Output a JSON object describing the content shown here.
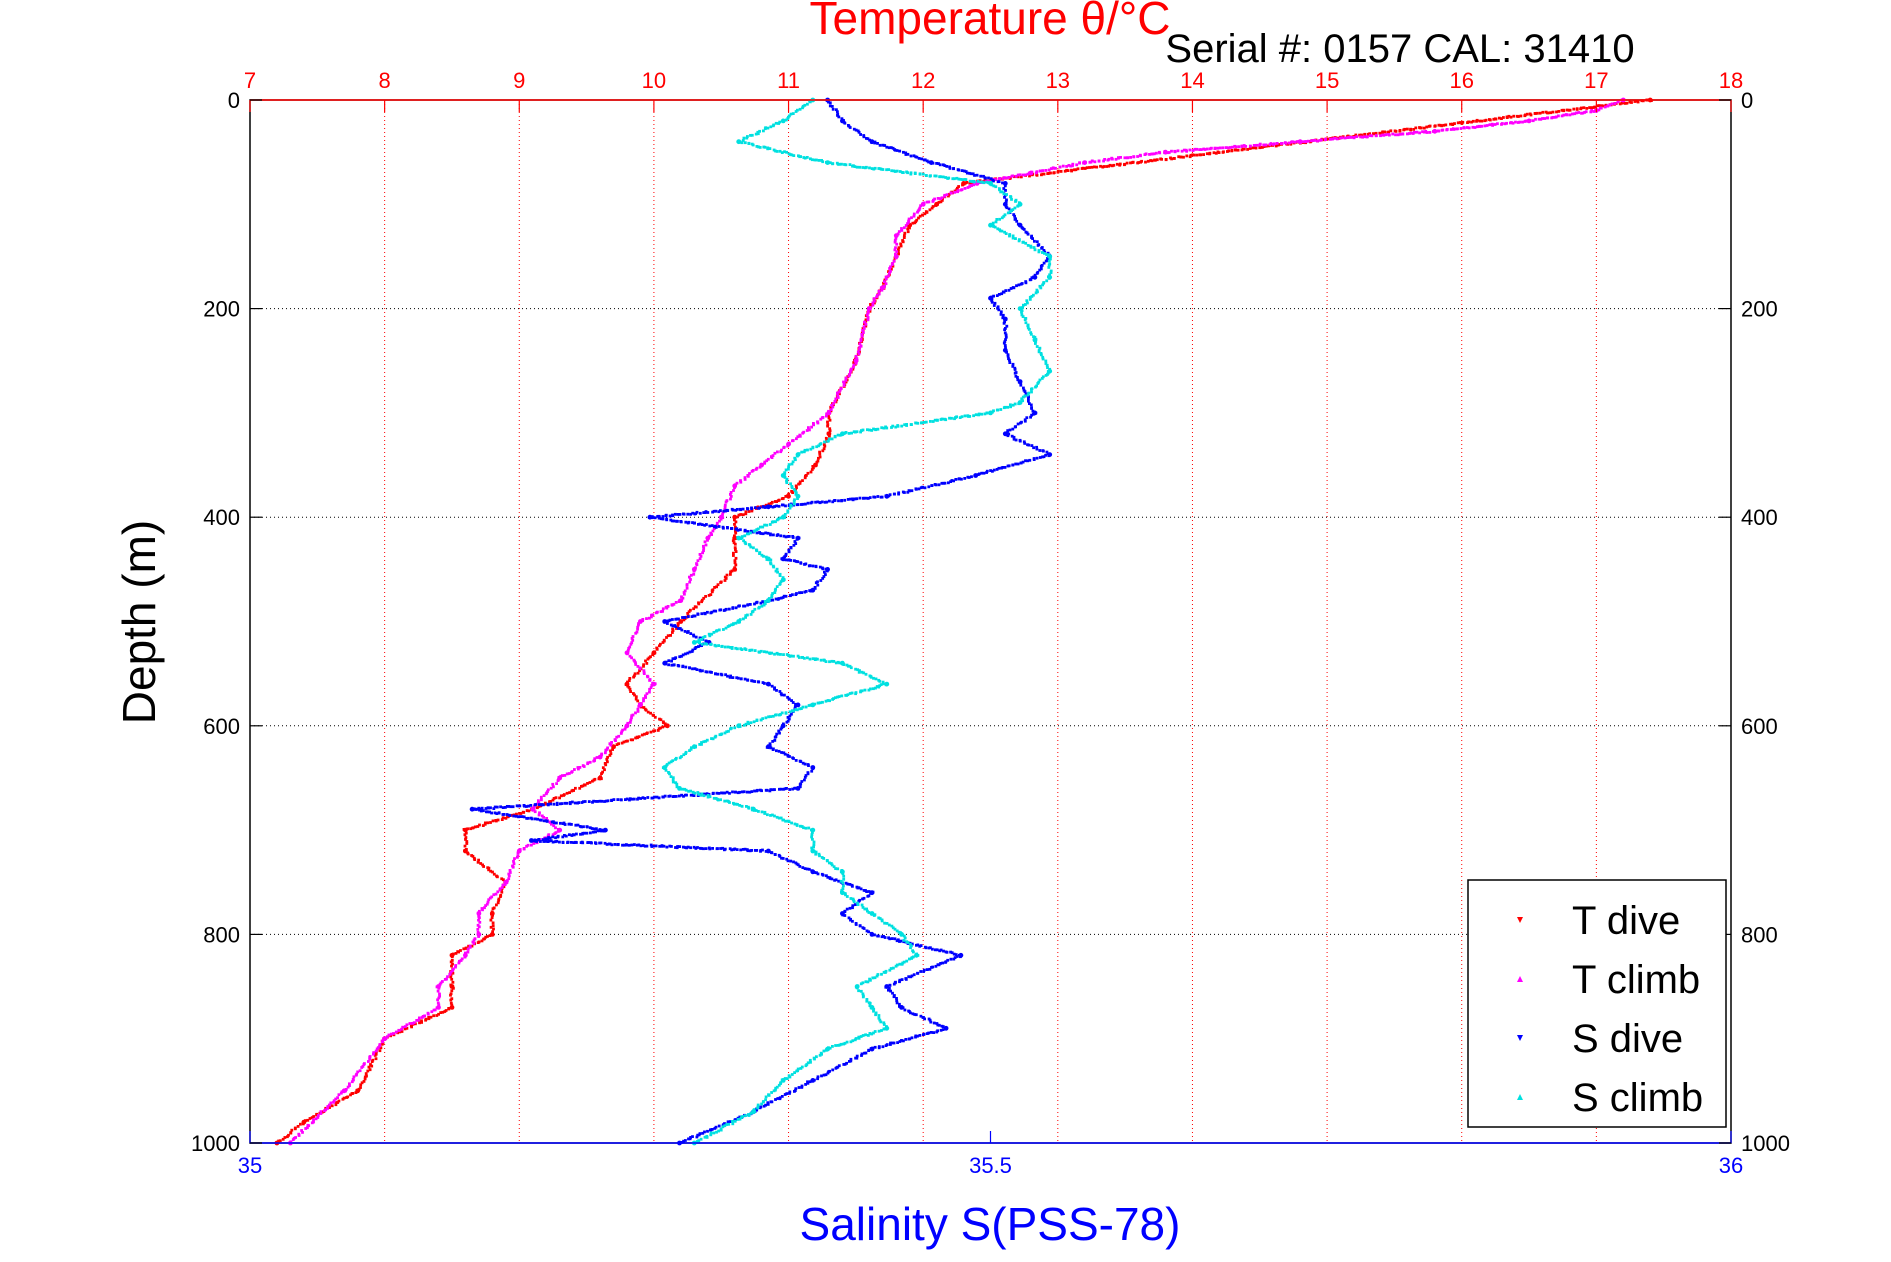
{
  "chart_data": {
    "type": "scatter",
    "title": "Temperature θ/°C",
    "annotation": "Serial #: 0157  CAL: 31410",
    "xlabel_bottom": "Salinity S(PSS-78)",
    "xlabel_top": "Temperature θ/°C",
    "ylabel": "Depth (m)",
    "x_top_range": [
      7,
      18
    ],
    "x_bottom_range": [
      35,
      36
    ],
    "y_range": [
      0,
      1000
    ],
    "y_reversed": true,
    "x_top_ticks": [
      7,
      8,
      9,
      10,
      11,
      12,
      13,
      14,
      15,
      16,
      17,
      18
    ],
    "x_bottom_ticks": [
      35,
      35.5,
      36
    ],
    "y_ticks": [
      0,
      200,
      400,
      600,
      800,
      1000
    ],
    "grid": true,
    "legend_position": "bottom-right",
    "colors": {
      "top_axis": "#ff0000",
      "bottom_axis": "#0000ff",
      "title": "#ff0000"
    },
    "series": [
      {
        "name": "T dive",
        "color": "#ff0000",
        "axis": "top",
        "depth": [
          0,
          80,
          100,
          120,
          150,
          180,
          200,
          250,
          300,
          320,
          350,
          380,
          400,
          420,
          450,
          500,
          530,
          560,
          580,
          600,
          620,
          650,
          680,
          700,
          720,
          750,
          780,
          800,
          820,
          850,
          870,
          900,
          950,
          980,
          1000
        ],
        "values": [
          17.4,
          12.3,
          12.1,
          11.9,
          11.8,
          11.7,
          11.6,
          11.5,
          11.3,
          11.3,
          11.2,
          11.0,
          10.6,
          10.6,
          10.6,
          10.2,
          10.0,
          9.8,
          9.9,
          10.1,
          9.7,
          9.6,
          9.1,
          8.6,
          8.6,
          8.9,
          8.8,
          8.8,
          8.5,
          8.5,
          8.5,
          8.0,
          7.8,
          7.4,
          7.2
        ]
      },
      {
        "name": "T climb",
        "color": "#ff00ff",
        "axis": "top",
        "depth": [
          0,
          10,
          20,
          30,
          40,
          50,
          60,
          70,
          80,
          100,
          130,
          150,
          180,
          200,
          250,
          300,
          330,
          350,
          370,
          400,
          420,
          450,
          480,
          500,
          530,
          560,
          580,
          600,
          630,
          650,
          680,
          700,
          720,
          750,
          780,
          800,
          820,
          850,
          870,
          900,
          950,
          1000
        ],
        "values": [
          17.2,
          17.0,
          16.5,
          15.8,
          14.8,
          13.8,
          13.2,
          12.8,
          12.4,
          12.0,
          11.8,
          11.8,
          11.7,
          11.6,
          11.5,
          11.3,
          11.0,
          10.8,
          10.6,
          10.5,
          10.4,
          10.3,
          10.2,
          9.9,
          9.8,
          10.0,
          9.9,
          9.8,
          9.6,
          9.3,
          9.1,
          9.3,
          9.0,
          8.9,
          8.7,
          8.7,
          8.6,
          8.4,
          8.4,
          8.0,
          7.7,
          7.3
        ]
      },
      {
        "name": "S dive",
        "color": "#0000ff",
        "axis": "bottom",
        "depth": [
          0,
          20,
          40,
          60,
          80,
          100,
          120,
          150,
          170,
          190,
          210,
          240,
          270,
          300,
          320,
          340,
          360,
          380,
          390,
          400,
          420,
          440,
          450,
          470,
          480,
          500,
          520,
          540,
          560,
          580,
          600,
          620,
          640,
          660,
          680,
          700,
          710,
          720,
          740,
          760,
          780,
          800,
          820,
          850,
          870,
          890,
          910,
          940,
          970,
          1000
        ],
        "values": [
          35.39,
          35.4,
          35.42,
          35.46,
          35.51,
          35.51,
          35.52,
          35.54,
          35.53,
          35.5,
          35.51,
          35.51,
          35.52,
          35.53,
          35.51,
          35.54,
          35.49,
          35.43,
          35.35,
          35.27,
          35.37,
          35.36,
          35.39,
          35.38,
          35.35,
          35.28,
          35.31,
          35.28,
          35.35,
          35.37,
          35.36,
          35.35,
          35.38,
          35.37,
          35.15,
          35.24,
          35.19,
          35.35,
          35.38,
          35.42,
          35.4,
          35.42,
          35.48,
          35.43,
          35.44,
          35.47,
          35.42,
          35.38,
          35.34,
          35.29
        ]
      },
      {
        "name": "S climb",
        "color": "#00e0e0",
        "axis": "bottom",
        "depth": [
          0,
          20,
          40,
          60,
          80,
          100,
          120,
          150,
          170,
          200,
          230,
          260,
          290,
          300,
          320,
          340,
          360,
          380,
          400,
          420,
          440,
          460,
          480,
          500,
          520,
          540,
          560,
          580,
          600,
          620,
          640,
          660,
          680,
          700,
          720,
          740,
          760,
          780,
          800,
          820,
          850,
          870,
          890,
          910,
          940,
          970,
          1000
        ],
        "values": [
          35.38,
          35.36,
          35.33,
          35.39,
          35.5,
          35.52,
          35.5,
          35.54,
          35.54,
          35.52,
          35.53,
          35.54,
          35.52,
          35.5,
          35.4,
          35.37,
          35.36,
          35.37,
          35.36,
          35.33,
          35.35,
          35.36,
          35.35,
          35.33,
          35.3,
          35.4,
          35.43,
          35.38,
          35.33,
          35.3,
          35.28,
          35.29,
          35.34,
          35.38,
          35.38,
          35.4,
          35.4,
          35.42,
          35.44,
          35.45,
          35.41,
          35.42,
          35.43,
          35.39,
          35.36,
          35.34,
          35.3
        ]
      }
    ]
  }
}
